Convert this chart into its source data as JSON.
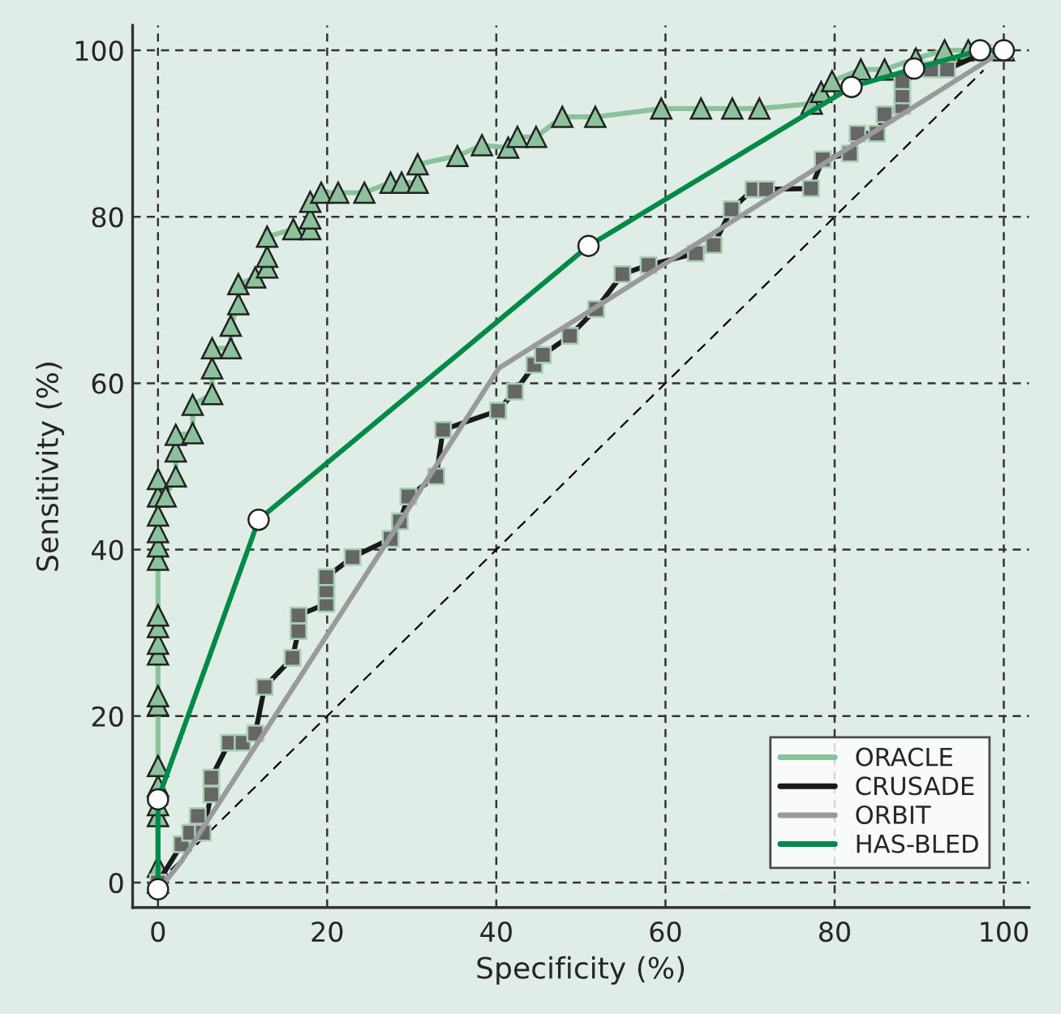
{
  "chart_data": {
    "type": "line",
    "xlabel": "Specificity (%)",
    "ylabel": "Sensitivity (%)",
    "xlim": [
      -3,
      103
    ],
    "ylim": [
      -3,
      103
    ],
    "xticks": [
      0,
      20,
      40,
      60,
      80,
      100
    ],
    "yticks": [
      0,
      20,
      40,
      60,
      80,
      100
    ],
    "grid": true,
    "legend": "bottom right",
    "series": [
      {
        "type": "line",
        "color": "#000000",
        "line_style": "dashed",
        "marker": "none",
        "x": [
          1.5,
          97.6
        ],
        "values": [
          1.5,
          97.6
        ]
      },
      {
        "name": "ORACLE",
        "color": "#8bc29c",
        "marker": "triangle",
        "line_style": "solid",
        "x": [
          0,
          0,
          0,
          0,
          0,
          0,
          0,
          0,
          0,
          0,
          0,
          0,
          0,
          0,
          0,
          0,
          0,
          0,
          0.9,
          2.1,
          2.1,
          2.1,
          4.1,
          4.1,
          6.4,
          6.4,
          6.4,
          8.6,
          8.6,
          9.5,
          9.5,
          11.5,
          12.9,
          12.9,
          12.9,
          16.0,
          18.0,
          18.0,
          18.0,
          19.3,
          21.3,
          24.4,
          27.5,
          28.8,
          30.7,
          30.7,
          35.4,
          38.3,
          41.4,
          42.5,
          44.7,
          47.8,
          51.7,
          59.5,
          64.2,
          67.9,
          71.1,
          77.3,
          78.4,
          79.7,
          83.1,
          85.9,
          89.6,
          93.0,
          95.8,
          100
        ],
        "values": [
          0,
          1.9,
          8.0,
          9.3,
          11.6,
          14.0,
          21.3,
          22.4,
          27.4,
          28.7,
          30.7,
          32.1,
          38.8,
          40.4,
          42.1,
          44.1,
          46.4,
          48.5,
          46.4,
          48.8,
          51.8,
          53.8,
          54.0,
          57.4,
          58.7,
          61.8,
          64.2,
          64.2,
          66.9,
          69.5,
          71.9,
          72.7,
          73.9,
          75.2,
          77.6,
          78.5,
          78.5,
          79.8,
          81.8,
          82.9,
          82.9,
          82.9,
          84.1,
          84.1,
          84.1,
          86.3,
          87.3,
          88.6,
          88.3,
          89.6,
          89.6,
          92.0,
          92.0,
          93.0,
          93.0,
          93.0,
          93.0,
          93.6,
          95.0,
          96.3,
          97.7,
          97.7,
          99.0,
          100,
          100,
          100
        ]
      },
      {
        "name": "CRUSADE",
        "color": "#1a1a1a",
        "marker": "square",
        "line_style": "solid",
        "x": [
          0,
          2.8,
          3.8,
          4.7,
          5.3,
          6.3,
          6.3,
          8.4,
          10.0,
          11.5,
          12.6,
          15.9,
          16.6,
          16.6,
          19.9,
          19.9,
          19.9,
          23.0,
          27.5,
          28.6,
          29.6,
          32.9,
          33.7,
          40.2,
          42.2,
          44.5,
          45.5,
          48.7,
          51.8,
          54.9,
          58.0,
          63.6,
          65.7,
          67.8,
          70.4,
          71.9,
          77.2,
          78.6,
          81.8,
          82.7,
          85.0,
          85.9,
          88.0,
          88.0,
          88.0,
          91.4,
          93.3,
          97.6,
          100
        ],
        "values": [
          0,
          4.6,
          6.0,
          8.0,
          6.0,
          10.6,
          12.6,
          16.8,
          16.8,
          17.9,
          23.5,
          27.0,
          30.2,
          32.1,
          33.5,
          35.1,
          36.7,
          39.1,
          41.3,
          43.4,
          46.4,
          48.8,
          54.4,
          56.7,
          59.0,
          62.2,
          63.4,
          65.7,
          68.9,
          73.1,
          74.2,
          75.6,
          76.6,
          80.9,
          83.3,
          83.3,
          83.4,
          86.9,
          87.6,
          90.0,
          90.0,
          92.3,
          93.3,
          94.6,
          96.3,
          97.7,
          97.7,
          99.7,
          100
        ]
      },
      {
        "name": "ORBIT",
        "color": "#9a9a9c",
        "marker": "none",
        "line_style": "solid",
        "x": [
          0,
          2.8,
          40.3,
          100
        ],
        "values": [
          -1,
          2.6,
          61.8,
          100
        ]
      },
      {
        "name": "HAS-BLED",
        "color": "#008a48",
        "marker": "circle",
        "line_style": "solid",
        "x": [
          0,
          0,
          11.9,
          50.9,
          82.0,
          89.4,
          97.2,
          100
        ],
        "values": [
          -0.8,
          10,
          43.6,
          76.5,
          95.6,
          97.8,
          100,
          100
        ]
      }
    ]
  }
}
